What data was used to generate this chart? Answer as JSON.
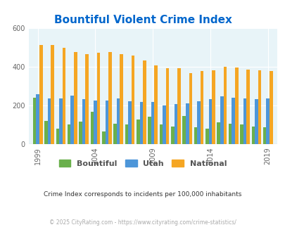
{
  "title": "Bountiful Violent Crime Index",
  "title_color": "#0066cc",
  "subtitle": "Crime Index corresponds to incidents per 100,000 inhabitants",
  "footer": "© 2025 CityRating.com - https://www.cityrating.com/crime-statistics/",
  "years": [
    1999,
    2000,
    2001,
    2002,
    2003,
    2004,
    2005,
    2006,
    2007,
    2008,
    2009,
    2010,
    2011,
    2012,
    2013,
    2014,
    2015,
    2016,
    2017,
    2018,
    2019
  ],
  "bountiful": [
    240,
    120,
    80,
    100,
    115,
    165,
    65,
    105,
    100,
    125,
    140,
    100,
    90,
    145,
    85,
    80,
    110,
    105,
    100,
    90,
    85
  ],
  "utah": [
    255,
    235,
    235,
    250,
    230,
    225,
    225,
    235,
    220,
    215,
    215,
    200,
    205,
    210,
    220,
    230,
    245,
    240,
    235,
    230,
    235
  ],
  "national": [
    510,
    510,
    495,
    475,
    465,
    470,
    475,
    465,
    455,
    430,
    405,
    390,
    390,
    365,
    375,
    380,
    400,
    395,
    385,
    380,
    378
  ],
  "bountiful_color": "#6ab04c",
  "utah_color": "#4d96d9",
  "national_color": "#f5a623",
  "bg_color": "#e8f4f8",
  "ylim": [
    0,
    600
  ],
  "yticks": [
    0,
    200,
    400,
    600
  ],
  "xtick_years": [
    1999,
    2004,
    2009,
    2014,
    2019
  ],
  "bar_width": 0.28,
  "subtitle_color": "#333333",
  "footer_color": "#aaaaaa"
}
